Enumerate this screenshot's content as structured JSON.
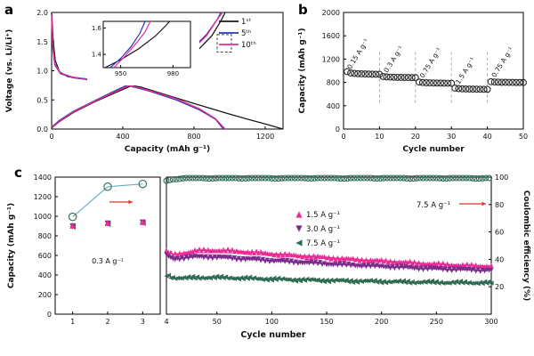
{
  "figure": {
    "panel_a_label": "a",
    "panel_b_label": "b",
    "panel_c_label": "c"
  },
  "chart_data": [
    {
      "id": "a",
      "type": "line",
      "xlabel": "Capacity (mAh g⁻¹)",
      "ylabel": "Voltage (vs. Li/Li⁺)",
      "xlim": [
        0,
        1300
      ],
      "ylim": [
        0,
        2
      ],
      "xticks": [
        0,
        400,
        800,
        1200
      ],
      "yticks": [
        0,
        0.5,
        1,
        1.5,
        2
      ],
      "legend": [
        {
          "label": "1ˢᵗ",
          "color": "#1a1a1a"
        },
        {
          "label": "5ᵗʰ",
          "color": "#2a35b5"
        },
        {
          "label": "10ᵗʰ",
          "color": "#ef2a94"
        }
      ],
      "series": [
        {
          "name": "cycle1-discharge",
          "color": "#1a1a1a",
          "points": [
            [
              0,
              2.0
            ],
            [
              8,
              1.55
            ],
            [
              20,
              1.18
            ],
            [
              45,
              0.98
            ],
            [
              90,
              0.9
            ],
            [
              200,
              0.85
            ],
            [
              350,
              0.8
            ],
            [
              500,
              0.72
            ],
            [
              650,
              0.58
            ],
            [
              800,
              0.44
            ],
            [
              950,
              0.3
            ],
            [
              1100,
              0.17
            ],
            [
              1220,
              0.07
            ],
            [
              1300,
              0.0
            ]
          ]
        },
        {
          "name": "cycle1-charge",
          "color": "#1a1a1a",
          "points": [
            [
              0,
              0.02
            ],
            [
              40,
              0.12
            ],
            [
              120,
              0.28
            ],
            [
              250,
              0.48
            ],
            [
              400,
              0.68
            ],
            [
              550,
              0.88
            ],
            [
              700,
              1.1
            ],
            [
              820,
              1.35
            ],
            [
              900,
              1.6
            ],
            [
              950,
              1.85
            ],
            [
              975,
              2.0
            ]
          ]
        },
        {
          "name": "cycle5-discharge",
          "color": "#2a35b5",
          "points": [
            [
              0,
              1.9
            ],
            [
              6,
              1.4
            ],
            [
              18,
              1.1
            ],
            [
              50,
              0.95
            ],
            [
              120,
              0.88
            ],
            [
              250,
              0.83
            ],
            [
              400,
              0.77
            ],
            [
              550,
              0.65
            ],
            [
              700,
              0.5
            ],
            [
              830,
              0.33
            ],
            [
              920,
              0.17
            ],
            [
              965,
              0.0
            ]
          ]
        },
        {
          "name": "cycle5-charge",
          "color": "#2a35b5",
          "points": [
            [
              0,
              0.03
            ],
            [
              40,
              0.14
            ],
            [
              120,
              0.3
            ],
            [
              250,
              0.5
            ],
            [
              400,
              0.72
            ],
            [
              550,
              0.92
            ],
            [
              680,
              1.12
            ],
            [
              790,
              1.38
            ],
            [
              870,
              1.62
            ],
            [
              930,
              1.88
            ],
            [
              952,
              2.0
            ]
          ]
        },
        {
          "name": "cycle10-discharge",
          "color": "#ef2a94",
          "points": [
            [
              0,
              1.95
            ],
            [
              6,
              1.45
            ],
            [
              18,
              1.12
            ],
            [
              50,
              0.96
            ],
            [
              120,
              0.89
            ],
            [
              250,
              0.84
            ],
            [
              400,
              0.78
            ],
            [
              550,
              0.66
            ],
            [
              700,
              0.52
            ],
            [
              830,
              0.35
            ],
            [
              920,
              0.18
            ],
            [
              975,
              0.0
            ]
          ]
        },
        {
          "name": "cycle10-charge",
          "color": "#ef2a94",
          "points": [
            [
              0,
              0.03
            ],
            [
              40,
              0.13
            ],
            [
              120,
              0.29
            ],
            [
              250,
              0.49
            ],
            [
              400,
              0.7
            ],
            [
              550,
              0.9
            ],
            [
              680,
              1.1
            ],
            [
              790,
              1.36
            ],
            [
              870,
              1.6
            ],
            [
              935,
              1.9
            ],
            [
              960,
              2.0
            ]
          ]
        }
      ],
      "highlight_box": {
        "x": [
          930,
          1010
        ],
        "y": [
          1.32,
          1.62
        ]
      },
      "inset": {
        "xlim": [
          940,
          990
        ],
        "ylim": [
          1.3,
          1.65
        ],
        "xticks": [
          950,
          980
        ],
        "yticks": [
          1.4,
          1.6
        ],
        "series": [
          {
            "color": "#1a1a1a",
            "points": [
              [
                941,
                1.3
              ],
              [
                950,
                1.36
              ],
              [
                960,
                1.44
              ],
              [
                970,
                1.54
              ],
              [
                976,
                1.62
              ],
              [
                978,
                1.65
              ]
            ]
          },
          {
            "color": "#2a35b5",
            "points": [
              [
                944,
                1.3
              ],
              [
                950,
                1.37
              ],
              [
                956,
                1.46
              ],
              [
                961,
                1.56
              ],
              [
                964,
                1.65
              ]
            ]
          },
          {
            "color": "#ef2a94",
            "points": [
              [
                946,
                1.3
              ],
              [
                952,
                1.38
              ],
              [
                958,
                1.47
              ],
              [
                964,
                1.57
              ],
              [
                967,
                1.65
              ]
            ]
          }
        ]
      }
    },
    {
      "id": "b",
      "type": "scatter",
      "xlabel": "Cycle number",
      "ylabel": "Capacity (mAh g⁻¹)",
      "xlim": [
        0,
        50
      ],
      "ylim": [
        0,
        2000
      ],
      "xticks": [
        0,
        10,
        20,
        30,
        40,
        50
      ],
      "yticks": [
        0,
        400,
        800,
        1200,
        1600,
        2000
      ],
      "marker": "open-circle",
      "color": "#2b2b2b",
      "cycles_start": 1,
      "capacity": [
        985,
        962,
        955,
        950,
        947,
        945,
        943,
        941,
        940,
        939,
        902,
        895,
        891,
        889,
        887,
        886,
        885,
        884,
        883,
        882,
        806,
        798,
        794,
        792,
        790,
        789,
        788,
        787,
        786,
        785,
        703,
        694,
        690,
        688,
        686,
        685,
        684,
        683,
        682,
        681,
        812,
        807,
        805,
        803,
        802,
        801,
        800,
        799,
        799,
        798
      ],
      "rate_labels": [
        {
          "label": "0.15 A g⁻¹",
          "x": 2.0,
          "y": 1020
        },
        {
          "label": "0.3 A g⁻¹",
          "x": 12.2,
          "y": 960
        },
        {
          "label": "0.75 A g⁻¹",
          "x": 22.2,
          "y": 868
        },
        {
          "label": "1.5 A g⁻¹",
          "x": 32.2,
          "y": 762
        },
        {
          "label": "0.75 A g⁻¹",
          "x": 42.2,
          "y": 878
        }
      ],
      "dividers": [
        10,
        20,
        30,
        40
      ]
    },
    {
      "id": "c",
      "type": "scatter",
      "xlabel": "Cycle number",
      "ylabel_left": "Capacity (mAh g⁻¹)",
      "ylabel_right": "Coulombic efficiency (%)",
      "ylim_left": [
        0,
        1400
      ],
      "yticks_left": [
        0,
        200,
        400,
        600,
        800,
        1000,
        1200,
        1400
      ],
      "ylim_right": [
        0,
        100
      ],
      "yticks_right": [
        20,
        40,
        60,
        80,
        100
      ],
      "colors": {
        "pink": "#ef2a94",
        "purple": "#7b2d8b",
        "green": "#2e6b52",
        "line": "#62aec5",
        "red": "#e03030"
      },
      "left_segment": {
        "xlim": [
          0.5,
          3.5
        ],
        "xticks": [
          1,
          2,
          3
        ],
        "annotation": "0.3 A g⁻¹",
        "capacity": {
          "cycles": [
            1,
            2,
            3
          ],
          "pink": [
            905,
            932,
            942
          ],
          "purple": [
            898,
            926,
            936
          ],
          "green": [
            893,
            921,
            931
          ]
        },
        "efficiency": {
          "cycles": [
            1,
            2,
            3
          ],
          "values": [
            71,
            93,
            95
          ]
        }
      },
      "right_segment": {
        "xlim": [
          4,
          300
        ],
        "xticks": [
          4,
          50,
          100,
          150,
          200,
          250,
          300
        ],
        "cycles": [
          4,
          10,
          20,
          30,
          40,
          50,
          60,
          80,
          100,
          120,
          140,
          160,
          180,
          200,
          220,
          240,
          260,
          280,
          300
        ],
        "series": [
          {
            "name": "1.5 A g⁻¹",
            "marker": "up",
            "color": "#ef2a94",
            "values": [
              645,
              608,
              628,
              648,
              655,
              654,
              650,
              636,
              618,
              602,
              588,
              572,
              558,
              546,
              532,
              518,
              508,
              498,
              492
            ]
          },
          {
            "name": "3.0 A g⁻¹",
            "marker": "down",
            "color": "#7b2d8b",
            "values": [
              598,
              563,
              574,
              584,
              585,
              580,
              574,
              560,
              546,
              532,
              520,
              506,
              496,
              486,
              476,
              466,
              458,
              452,
              446
            ]
          },
          {
            "name": "7.5 A g⁻¹",
            "marker": "left",
            "color": "#2e6b52",
            "values": [
              398,
              374,
              369,
              372,
              375,
              375,
              372,
              365,
              358,
              352,
              347,
              342,
              338,
              334,
              330,
              327,
              324,
              322,
              320
            ]
          }
        ],
        "efficiency": {
          "color": "#2e6b52",
          "values": [
            97.2,
            98.8,
            99.3,
            99.5,
            99.5,
            99.4,
            99.5,
            99.5,
            99.4,
            99.5,
            99.5,
            99.4,
            99.5,
            99.5,
            99.4,
            99.5,
            99.5,
            99.4,
            99.5
          ]
        },
        "annotation": "7.5 A g⁻¹"
      },
      "legend": [
        {
          "label": "1.5 A g⁻¹",
          "color": "#ef2a94",
          "marker": "up"
        },
        {
          "label": "3.0 A g⁻¹",
          "color": "#7b2d8b",
          "marker": "down"
        },
        {
          "label": "7.5 A g⁻¹",
          "color": "#2e6b52",
          "marker": "left"
        }
      ]
    }
  ]
}
